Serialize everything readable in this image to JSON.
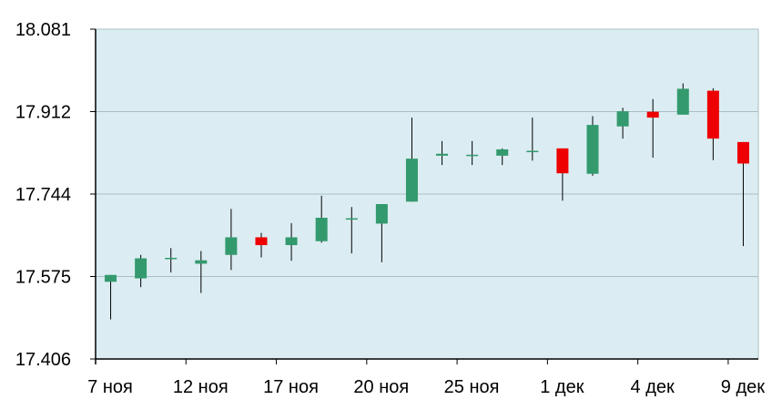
{
  "chart_data": {
    "type": "candlestick",
    "title": "",
    "xlabel": "",
    "ylabel": "",
    "ylim": [
      17.406,
      18.081
    ],
    "y_ticks": [
      "18.081",
      "17.912",
      "17.744",
      "17.575",
      "17.406"
    ],
    "x_tick_labels": [
      {
        "label": "7 ноя",
        "index": 0
      },
      {
        "label": "12 ноя",
        "index": 3
      },
      {
        "label": "17 ноя",
        "index": 6
      },
      {
        "label": "20 ноя",
        "index": 9
      },
      {
        "label": "25 ноя",
        "index": 12
      },
      {
        "label": "1 дек",
        "index": 15
      },
      {
        "label": "4 дек",
        "index": 18
      },
      {
        "label": "9 дек",
        "index": 21
      }
    ],
    "grid": true,
    "colors": {
      "plot_bg": "#dbedf2",
      "up": "#339a6e",
      "down": "#ee0000",
      "wick": "#000000",
      "grid": "#a8bfc6",
      "axis": "#000000"
    },
    "candles": [
      {
        "open": 17.564,
        "high": 17.578,
        "low": 17.487,
        "close": 17.578
      },
      {
        "open": 17.571,
        "high": 17.619,
        "low": 17.553,
        "close": 17.612
      },
      {
        "open": 17.613,
        "high": 17.633,
        "low": 17.583,
        "close": 17.613
      },
      {
        "open": 17.601,
        "high": 17.627,
        "low": 17.541,
        "close": 17.608
      },
      {
        "open": 17.619,
        "high": 17.713,
        "low": 17.588,
        "close": 17.655
      },
      {
        "open": 17.655,
        "high": 17.664,
        "low": 17.614,
        "close": 17.639
      },
      {
        "open": 17.639,
        "high": 17.684,
        "low": 17.607,
        "close": 17.655
      },
      {
        "open": 17.647,
        "high": 17.74,
        "low": 17.644,
        "close": 17.695
      },
      {
        "open": 17.694,
        "high": 17.717,
        "low": 17.622,
        "close": 17.694
      },
      {
        "open": 17.683,
        "high": 17.723,
        "low": 17.604,
        "close": 17.723
      },
      {
        "open": 17.728,
        "high": 17.9,
        "low": 17.728,
        "close": 17.816
      },
      {
        "open": 17.822,
        "high": 17.852,
        "low": 17.803,
        "close": 17.826
      },
      {
        "open": 17.824,
        "high": 17.852,
        "low": 17.803,
        "close": 17.824
      },
      {
        "open": 17.822,
        "high": 17.837,
        "low": 17.803,
        "close": 17.835
      },
      {
        "open": 17.832,
        "high": 17.9,
        "low": 17.812,
        "close": 17.832
      },
      {
        "open": 17.837,
        "high": 17.837,
        "low": 17.73,
        "close": 17.786
      },
      {
        "open": 17.785,
        "high": 17.903,
        "low": 17.781,
        "close": 17.885
      },
      {
        "open": 17.882,
        "high": 17.92,
        "low": 17.857,
        "close": 17.913
      },
      {
        "open": 17.912,
        "high": 17.938,
        "low": 17.818,
        "close": 17.9
      },
      {
        "open": 17.906,
        "high": 17.97,
        "low": 17.906,
        "close": 17.959
      },
      {
        "open": 17.955,
        "high": 17.96,
        "low": 17.813,
        "close": 17.857
      },
      {
        "open": 17.85,
        "high": 17.85,
        "low": 17.637,
        "close": 17.806
      }
    ]
  }
}
